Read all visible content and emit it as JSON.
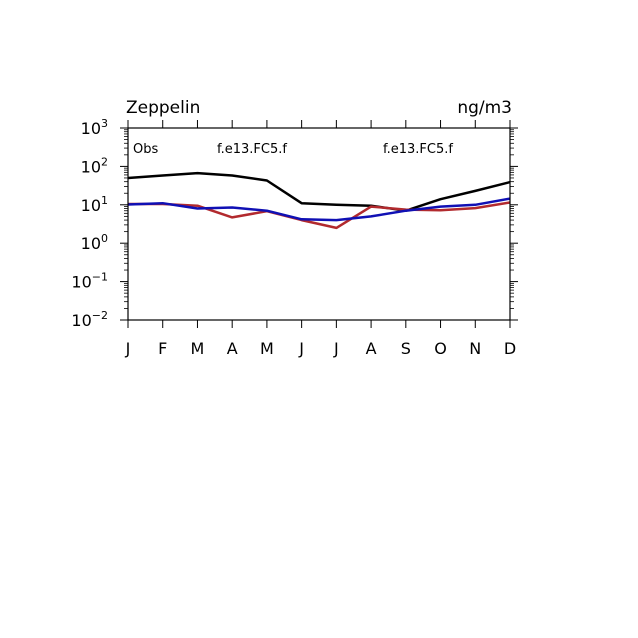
{
  "chart_data": {
    "type": "line",
    "title_left": "Zeppelin",
    "title_right": "ng/m3",
    "yscale": "log",
    "ylim": [
      0.01,
      1000
    ],
    "yticks": [
      {
        "base": "10",
        "exp": "−2",
        "value": 0.01
      },
      {
        "base": "10",
        "exp": "−1",
        "value": 0.1
      },
      {
        "base": "10",
        "exp": "0",
        "value": 1
      },
      {
        "base": "10",
        "exp": "1",
        "value": 10
      },
      {
        "base": "10",
        "exp": "2",
        "value": 100
      },
      {
        "base": "10",
        "exp": "3",
        "value": 1000
      }
    ],
    "categories": [
      "J",
      "F",
      "M",
      "A",
      "M",
      "J",
      "J",
      "A",
      "S",
      "O",
      "N",
      "D"
    ],
    "grid": false,
    "legend_placement": "top, inside plot",
    "series": [
      {
        "name": "Obs",
        "color": "#000000",
        "values": [
          50,
          58,
          67,
          58,
          43,
          11,
          10,
          9.5,
          7,
          14,
          23,
          39
        ]
      },
      {
        "name": "f.e13.FC5.f",
        "color": "#b22a2e",
        "values": [
          10.5,
          10.5,
          9.5,
          4.7,
          6.8,
          4,
          2.5,
          9,
          7.5,
          7.2,
          8.2,
          11.5
        ]
      },
      {
        "name": "f.e13.FC5.f",
        "color": "#1010b4",
        "values": [
          10.2,
          11,
          8,
          8.5,
          7,
          4.2,
          4,
          5,
          7,
          9,
          10,
          14.5
        ]
      }
    ]
  }
}
